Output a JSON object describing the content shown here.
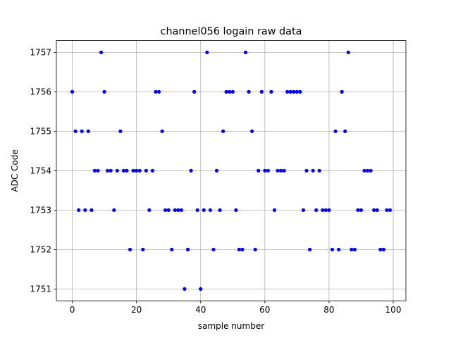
{
  "chart_data": {
    "type": "scatter",
    "title": "channel056 logain raw data",
    "xlabel": "sample number",
    "ylabel": "ADC Code",
    "xlim": [
      -4.95,
      103.95
    ],
    "ylim": [
      1750.7,
      1757.3
    ],
    "xticks": [
      0,
      20,
      40,
      60,
      80,
      100
    ],
    "yticks": [
      1751,
      1752,
      1753,
      1754,
      1755,
      1756,
      1757
    ],
    "grid": true,
    "marker_color": "#0000ff",
    "series": [
      {
        "x": [
          0,
          1,
          2,
          3,
          4,
          5,
          6,
          7,
          8,
          9,
          10,
          11,
          12,
          13,
          14,
          15,
          16,
          17,
          18,
          19,
          20,
          21,
          22,
          23,
          24,
          25,
          26,
          27,
          28,
          29,
          30,
          31,
          32,
          33,
          34,
          35,
          36,
          37,
          38,
          39,
          40,
          41,
          42,
          43,
          44,
          45,
          46,
          47,
          48,
          49,
          50,
          51,
          52,
          53,
          54,
          55,
          56,
          57,
          58,
          59,
          60,
          61,
          62,
          63,
          64,
          65,
          66,
          67,
          68,
          69,
          70,
          71,
          72,
          73,
          74,
          75,
          76,
          77,
          78,
          79,
          80,
          81,
          82,
          83,
          84,
          85,
          86,
          87,
          88,
          89,
          90,
          91,
          92,
          93,
          94,
          95,
          96,
          97,
          98,
          99
        ],
        "y": [
          1756,
          1755,
          1753,
          1755,
          1753,
          1755,
          1753,
          1754,
          1754,
          1757,
          1756,
          1754,
          1754,
          1753,
          1754,
          1755,
          1754,
          1754,
          1752,
          1754,
          1754,
          1754,
          1752,
          1754,
          1753,
          1754,
          1756,
          1756,
          1755,
          1753,
          1753,
          1752,
          1753,
          1753,
          1753,
          1751,
          1752,
          1754,
          1756,
          1753,
          1751,
          1753,
          1757,
          1753,
          1752,
          1754,
          1753,
          1755,
          1756,
          1756,
          1756,
          1753,
          1752,
          1752,
          1757,
          1756,
          1755,
          1752,
          1754,
          1756,
          1754,
          1754,
          1756,
          1753,
          1754,
          1754,
          1754,
          1756,
          1756,
          1756,
          1756,
          1756,
          1753,
          1754,
          1752,
          1754,
          1753,
          1754,
          1753,
          1753,
          1753,
          1752,
          1755,
          1752,
          1756,
          1755,
          1757,
          1752,
          1752,
          1753,
          1753,
          1754,
          1754,
          1754,
          1753,
          1753,
          1752,
          1752,
          1753,
          1753
        ]
      }
    ]
  }
}
